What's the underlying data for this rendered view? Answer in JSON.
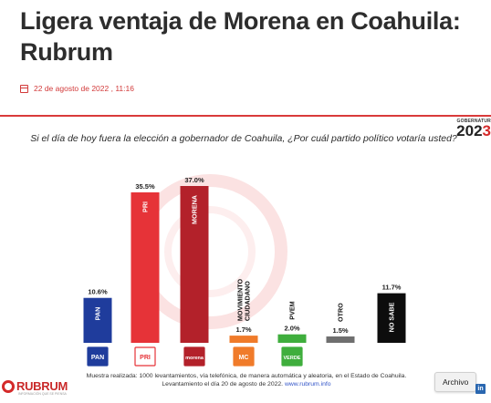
{
  "article": {
    "headline": "Ligera ventaja de Morena en Coahuila: Rubrum",
    "date": "22 de agosto de 2022 , 11:16"
  },
  "figure": {
    "badge_small": "GOBERNATUR",
    "badge_year_a": "202",
    "badge_year_b": "3",
    "footnote_line1": "Muestra realizada: 1000 levantamientos, vía telefónica, de manera automática y aleatoria, en el Estado de Coahuila.",
    "footnote_line2": "Levantamiento el día 20 de agosto de 2022.",
    "footnote_link": "www.rubrum.info",
    "brand_name": "RUBRUM",
    "brand_tagline": "INFORMACIÓN QUE SE PIENSA",
    "archive_button": "Archivo",
    "linkedin_label": "in"
  },
  "chart_data": {
    "type": "bar",
    "title": "Si el día de hoy fuera la elección a gobernador de Coahuila, ¿Por cuál  partido político votaría usted?",
    "xlabel": "",
    "ylabel": "",
    "ylim": [
      0,
      40
    ],
    "grid": false,
    "legend": "none",
    "categories": [
      "PAN",
      "PRI",
      "MORENA",
      "MOVIMIENTO CIUDADANO",
      "PVEM",
      "OTRO",
      "NO SABE"
    ],
    "values": [
      10.6,
      35.5,
      37.0,
      1.7,
      2.0,
      1.5,
      11.7
    ],
    "data_labels": [
      "10.6%",
      "35.5%",
      "37.0%",
      "1.7%",
      "2.0%",
      "1.5%",
      "11.7%"
    ],
    "bar_labels": [
      "PAN",
      "PRI",
      "MORENA",
      "MOVIMIENTO\nCIUDADANO",
      "PVEM",
      "OTRO",
      "NO SABE"
    ],
    "colors": [
      "#1f3c9c",
      "#e63338",
      "#b3212a",
      "#f07b2a",
      "#3fae3d",
      "#6f6f6f",
      "#0d0d0d"
    ],
    "logo_text": [
      "PAN",
      "PRI",
      "morena",
      "MC",
      "VERDE"
    ]
  }
}
